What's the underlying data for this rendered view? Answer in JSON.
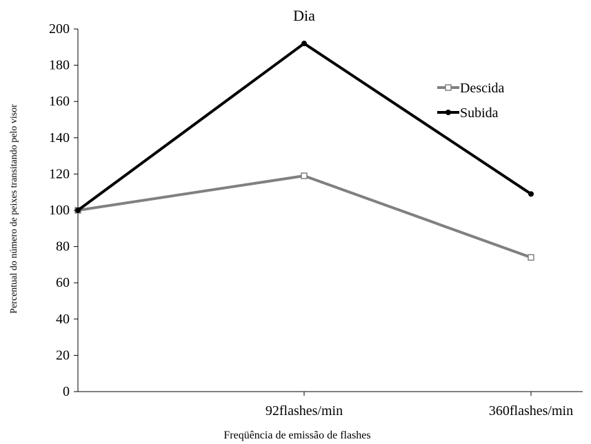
{
  "chart_data": {
    "type": "line",
    "title": "Dia",
    "xlabel": "Freqüência de emissão de flashes",
    "ylabel": "Percentual do número de peixes transitando pelo visor",
    "categories": [
      "",
      "92flashes/min",
      "360flashes/min"
    ],
    "ylim": [
      0,
      200
    ],
    "yticks": [
      0,
      20,
      40,
      60,
      80,
      100,
      120,
      140,
      160,
      180,
      200
    ],
    "grid": false,
    "legend_position": "top-right",
    "series": [
      {
        "name": "Descida",
        "values": [
          100,
          119,
          74
        ],
        "color": "#808080",
        "marker": "open-square"
      },
      {
        "name": "Subida",
        "values": [
          100,
          192,
          109
        ],
        "color": "#000000",
        "marker": "filled-circle"
      }
    ]
  }
}
